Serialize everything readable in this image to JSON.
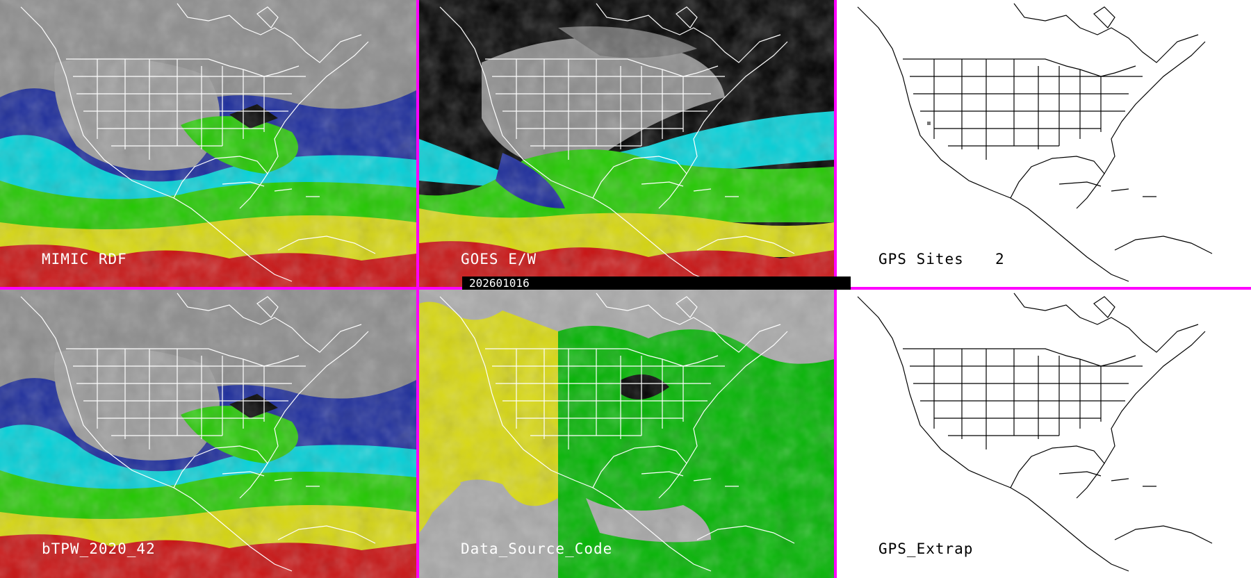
{
  "panels": [
    {
      "label": "MIMIC RDF"
    },
    {
      "label": "GOES E/W"
    },
    {
      "label": "GPS Sites",
      "count": "2"
    },
    {
      "label": "bTPW_2020_42"
    },
    {
      "label": "Data_Source_Code"
    },
    {
      "label": "GPS_Extrap"
    }
  ],
  "timestamp": "202601016",
  "colors": {
    "divider": "#ff00ff",
    "tpw_scale": [
      "#cc1010",
      "#e0e010",
      "#22cc00",
      "#00e0e0",
      "#1020a0",
      "#8a8a8a"
    ],
    "source_code": [
      "#e0e010",
      "#00b400",
      "#a8a8a8",
      "#000000"
    ]
  }
}
